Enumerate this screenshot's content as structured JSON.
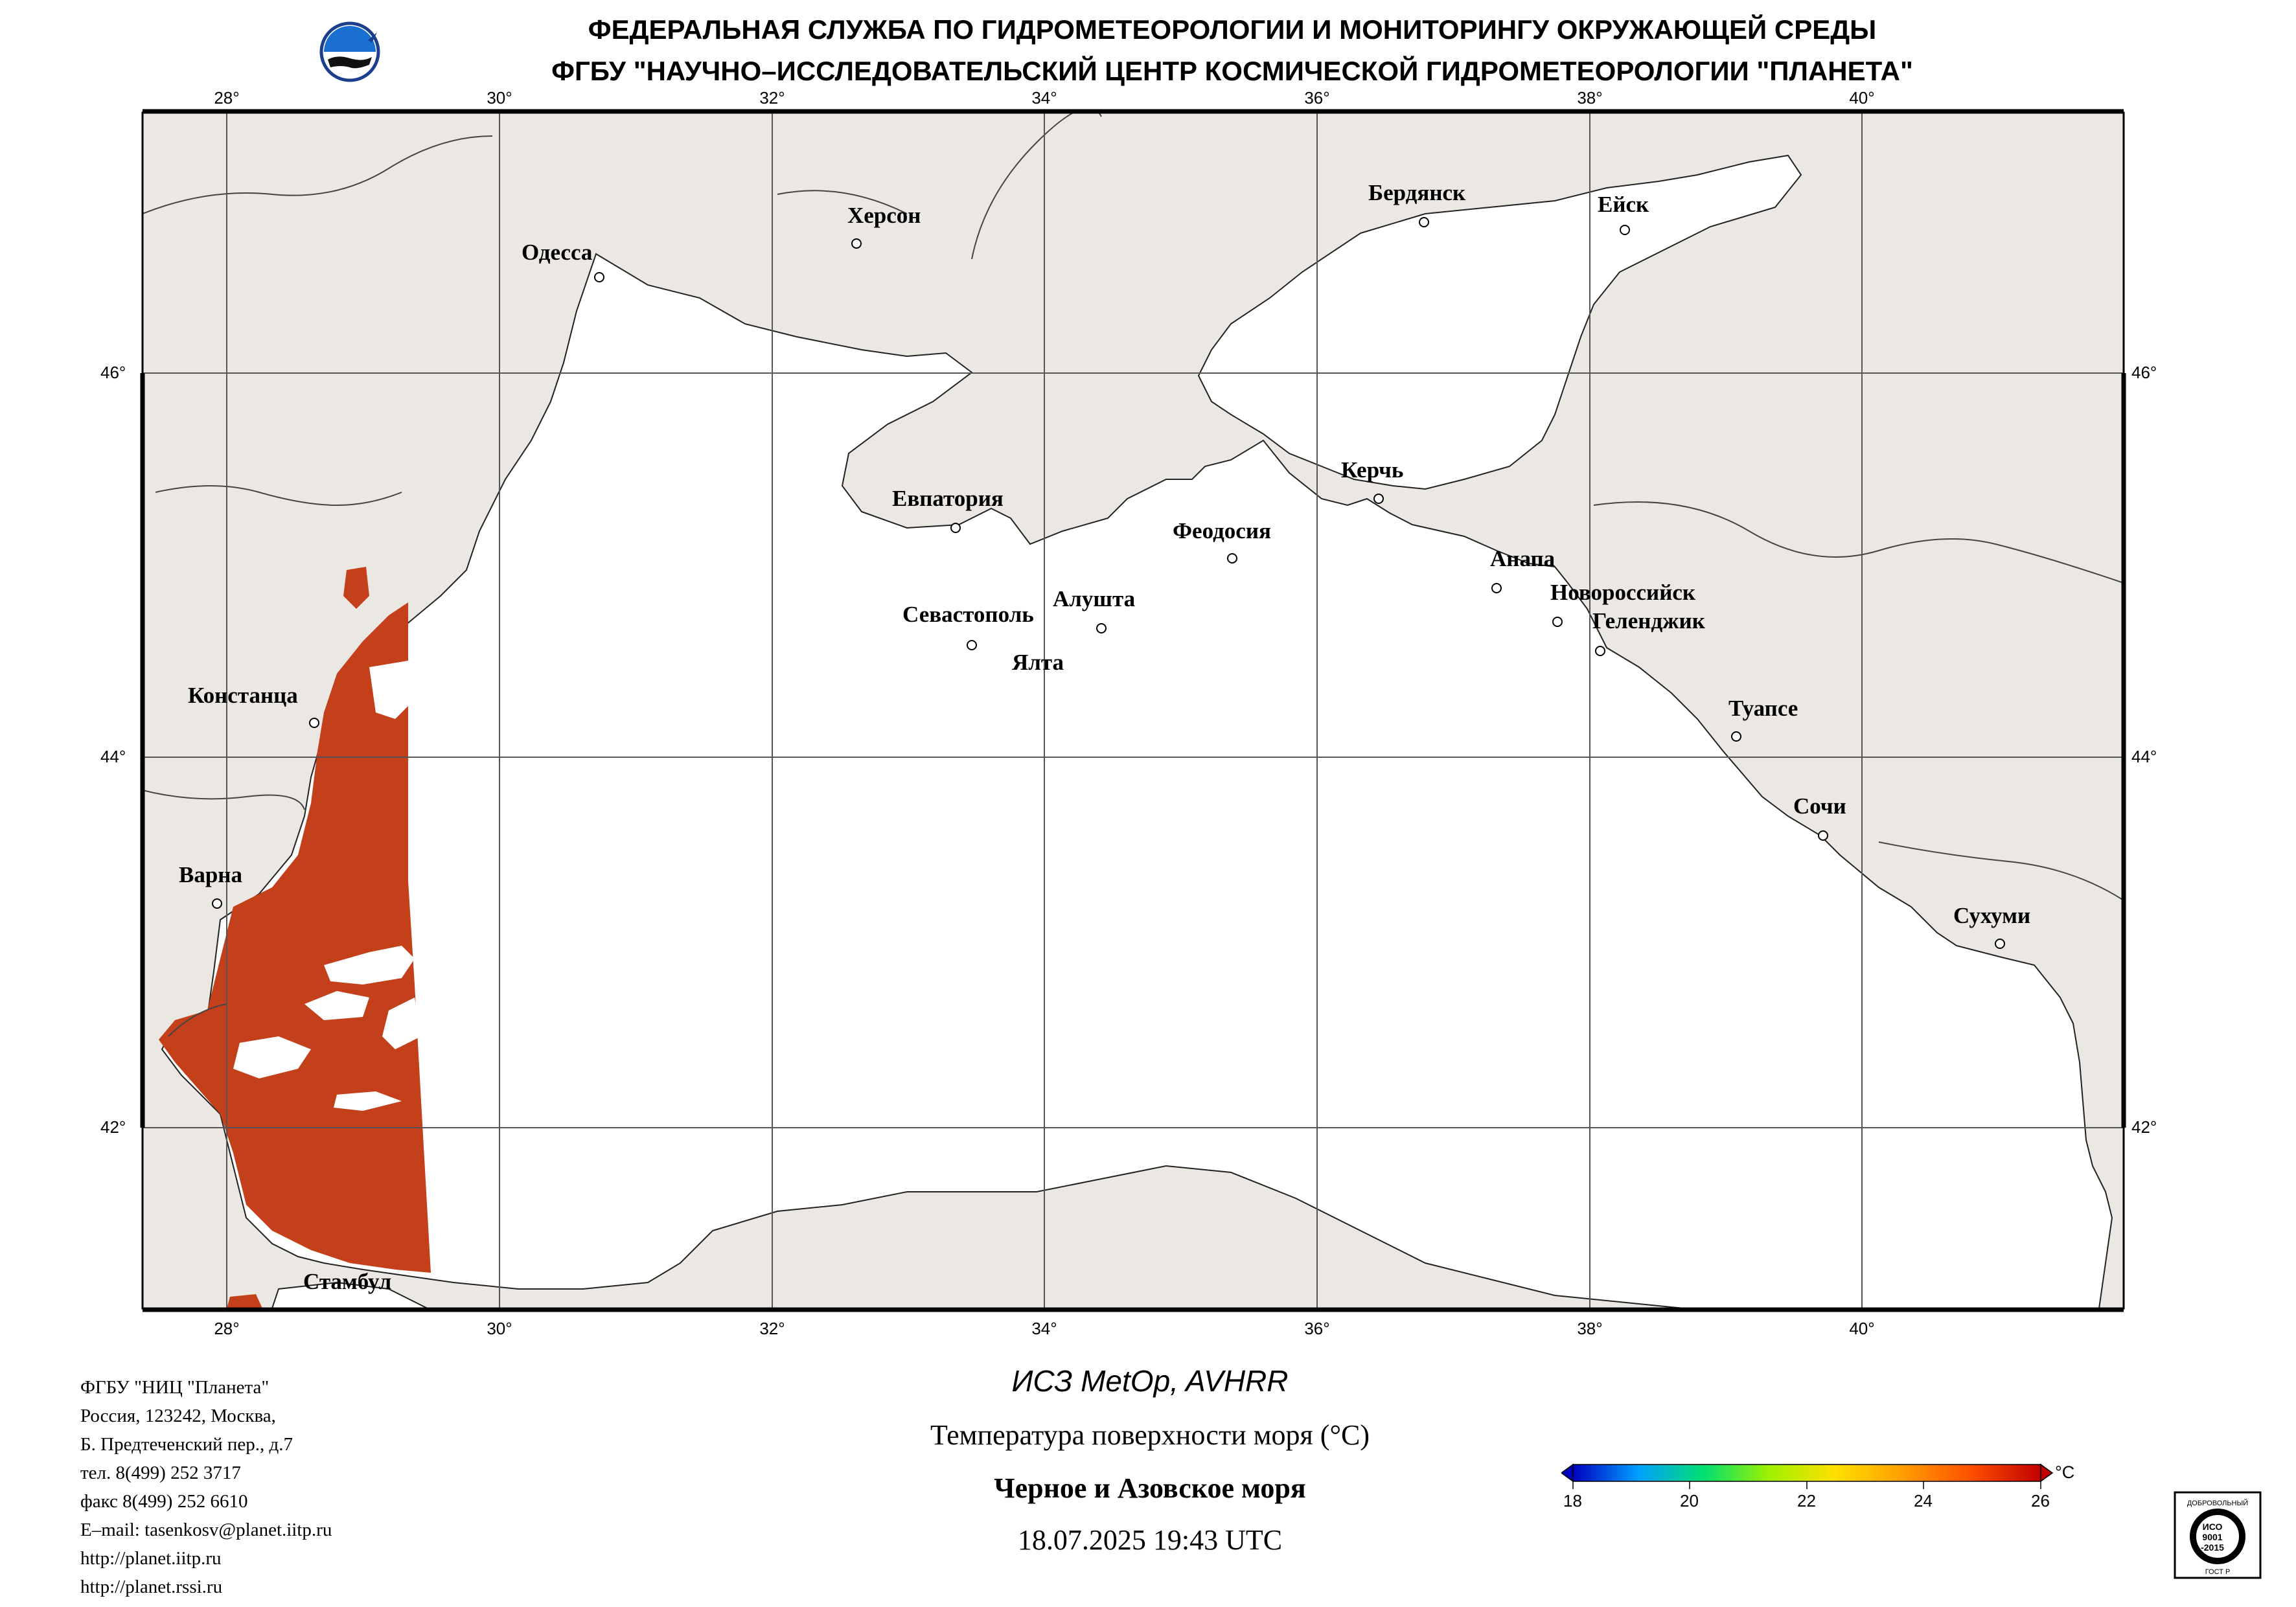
{
  "header": {
    "line1": "ФЕДЕРАЛЬНАЯ СЛУЖБА ПО ГИДРОМЕТЕОРОЛОГИИ И МОНИТОРИНГУ ОКРУЖАЮЩЕЙ СРЕДЫ",
    "line2": "ФГБУ \"НАУЧНО–ИССЛЕДОВАТЕЛЬСКИЙ ЦЕНТР КОСМИЧЕСКОЙ ГИДРОМЕТЕОРОЛОГИИ \"ПЛАНЕТА\""
  },
  "map": {
    "lon_labels": [
      "28°",
      "30°",
      "32°",
      "34°",
      "36°",
      "38°",
      "40°"
    ],
    "lat_labels": [
      "46°",
      "44°",
      "42°"
    ],
    "cities": [
      {
        "name": "Одесса"
      },
      {
        "name": "Херсон"
      },
      {
        "name": "Бердянск"
      },
      {
        "name": "Ейск"
      },
      {
        "name": "Евпатория"
      },
      {
        "name": "Керчь"
      },
      {
        "name": "Феодосия"
      },
      {
        "name": "Анапа"
      },
      {
        "name": "Новороссийск"
      },
      {
        "name": "Геленджик"
      },
      {
        "name": "Севастополь"
      },
      {
        "name": "Алушта"
      },
      {
        "name": "Ялта"
      },
      {
        "name": "Констанца"
      },
      {
        "name": "Туапсе"
      },
      {
        "name": "Сочи"
      },
      {
        "name": "Варна"
      },
      {
        "name": "Сухуми"
      },
      {
        "name": "Стамбул"
      }
    ],
    "colors": {
      "land": "#ebe7e3",
      "sea": "#ffffff",
      "sst": "#c03a10",
      "grid": "#555555"
    }
  },
  "footer": {
    "org": [
      "ФГБУ \"НИЦ \"Планета\"",
      "Россия, 123242, Москва,",
      "Б. Предтеченский пер., д.7",
      "тел. 8(499) 252 3717",
      "факс 8(499) 252 6610",
      "E–mail: tasenkosv@planet.iitp.ru",
      "http://planet.iitp.ru",
      "http://planet.rssi.ru"
    ],
    "satellite": "ИСЗ MetOp, AVHRR",
    "parameter": "Температура поверхности моря (°C)",
    "region": "Черное и Азовское моря",
    "datetime": "18.07.2025 19:43 UTC"
  },
  "colorbar": {
    "ticks": [
      "18",
      "20",
      "22",
      "24",
      "26"
    ],
    "unit": "°C",
    "min": 18,
    "max": 26,
    "colors": [
      "#0000c0",
      "#00a0ff",
      "#00e070",
      "#a0f000",
      "#ffe000",
      "#ffa000",
      "#ff5000",
      "#c00000"
    ]
  },
  "certificate": {
    "line1": "ДОБРОВОЛЬНЫЙ",
    "iso": "ИСО",
    "num": "9001",
    "year": "-2015",
    "line2": "ГОСТ Р"
  }
}
